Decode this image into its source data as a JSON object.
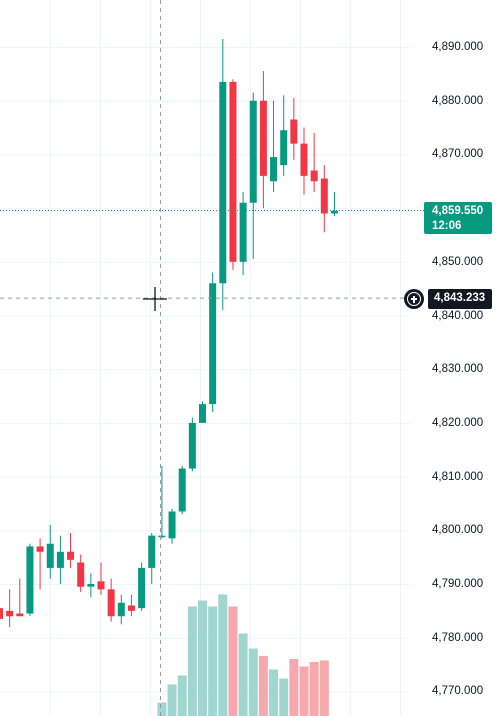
{
  "price_axis": {
    "ticks": [
      "4,890.000",
      "4,880.000",
      "4,870.000",
      "4,860.000",
      "4,850.000",
      "4,840.000",
      "4,830.000",
      "4,820.000",
      "4,810.000",
      "4,800.000",
      "4,790.000",
      "4,780.000",
      "4,770.000"
    ]
  },
  "last_price": {
    "value": "4,859.550",
    "countdown": "12:06",
    "raw": 4859.55
  },
  "crosshair": {
    "price_label": "4,843.233",
    "raw": 4843.233
  },
  "colors": {
    "up": "#089981",
    "down": "#f23645",
    "up_volume": "#9fd6cf",
    "down_volume": "#f7a8ac",
    "grid": "#f0f3fa"
  },
  "chart_data": {
    "type": "candlestick",
    "ylim": [
      4768,
      4900
    ],
    "candles": [
      {
        "o": 4785.5,
        "h": 4789.0,
        "l": 4781.0,
        "c": 4783.5
      },
      {
        "o": 4785.0,
        "h": 4789.0,
        "l": 4782.0,
        "c": 4784.0
      },
      {
        "o": 4784.5,
        "h": 4791.0,
        "l": 4784.0,
        "c": 4784.0
      },
      {
        "o": 4784.5,
        "h": 4797.5,
        "l": 4784.0,
        "c": 4797.0
      },
      {
        "o": 4797.0,
        "h": 4798.5,
        "l": 4789.0,
        "c": 4796.0
      },
      {
        "o": 4793.0,
        "h": 4801.0,
        "l": 4791.0,
        "c": 4797.5
      },
      {
        "o": 4793.0,
        "h": 4799.0,
        "l": 4790.0,
        "c": 4796.0
      },
      {
        "o": 4796.0,
        "h": 4799.5,
        "l": 4793.0,
        "c": 4794.5
      },
      {
        "o": 4794.0,
        "h": 4795.5,
        "l": 4788.5,
        "c": 4789.5
      },
      {
        "o": 4789.5,
        "h": 4792.0,
        "l": 4787.5,
        "c": 4790.0
      },
      {
        "o": 4790.5,
        "h": 4794.0,
        "l": 4788.0,
        "c": 4789.0
      },
      {
        "o": 4789.0,
        "h": 4791.0,
        "l": 4783.0,
        "c": 4784.0
      },
      {
        "o": 4784.0,
        "h": 4788.0,
        "l": 4782.5,
        "c": 4786.5
      },
      {
        "o": 4786.0,
        "h": 4788.0,
        "l": 4784.0,
        "c": 4785.0
      },
      {
        "o": 4785.5,
        "h": 4794.0,
        "l": 4785.0,
        "c": 4793.0
      },
      {
        "o": 4793.0,
        "h": 4799.5,
        "l": 4790.0,
        "c": 4799.0
      },
      {
        "o": 4799.0,
        "h": 4812.0,
        "l": 4798.5,
        "c": 4799.0
      },
      {
        "o": 4798.5,
        "h": 4804.0,
        "l": 4797.5,
        "c": 4803.5
      },
      {
        "o": 4803.5,
        "h": 4812.0,
        "l": 4803.0,
        "c": 4811.5
      },
      {
        "o": 4811.5,
        "h": 4821.0,
        "l": 4811.0,
        "c": 4820.0
      },
      {
        "o": 4820.0,
        "h": 4824.0,
        "l": 4820.0,
        "c": 4823.5
      },
      {
        "o": 4823.5,
        "h": 4848.0,
        "l": 4822.0,
        "c": 4846.0
      },
      {
        "o": 4846.0,
        "h": 4891.5,
        "l": 4841.0,
        "c": 4883.5
      },
      {
        "o": 4883.5,
        "h": 4884.0,
        "l": 4848.5,
        "c": 4850.0
      },
      {
        "o": 4850.0,
        "h": 4863.0,
        "l": 4847.5,
        "c": 4861.0
      },
      {
        "o": 4861.0,
        "h": 4881.5,
        "l": 4850.5,
        "c": 4880.0
      },
      {
        "o": 4880.0,
        "h": 4885.5,
        "l": 4860.0,
        "c": 4866.0
      },
      {
        "o": 4865.0,
        "h": 4880.0,
        "l": 4863.0,
        "c": 4869.5
      },
      {
        "o": 4868.0,
        "h": 4881.0,
        "l": 4866.0,
        "c": 4874.5
      },
      {
        "o": 4876.5,
        "h": 4880.5,
        "l": 4869.0,
        "c": 4872.0
      },
      {
        "o": 4872.0,
        "h": 4875.0,
        "l": 4862.5,
        "c": 4866.0
      },
      {
        "o": 4867.0,
        "h": 4874.0,
        "l": 4863.0,
        "c": 4865.0
      },
      {
        "o": 4865.5,
        "h": 4868.0,
        "l": 4855.5,
        "c": 4859.0
      },
      {
        "o": 4859.0,
        "h": 4863.0,
        "l": 4858.5,
        "c": 4859.5
      }
    ],
    "volumes": [
      0,
      0,
      0,
      0,
      0,
      0,
      0,
      0,
      0,
      0,
      0,
      0,
      0,
      0,
      0,
      0,
      0.09,
      0.21,
      0.27,
      0.73,
      0.77,
      0.73,
      0.81,
      0.73,
      0.55,
      0.45,
      0.4,
      0.31,
      0.25,
      0.38,
      0.33,
      0.36,
      0.37,
      0.0
    ]
  }
}
